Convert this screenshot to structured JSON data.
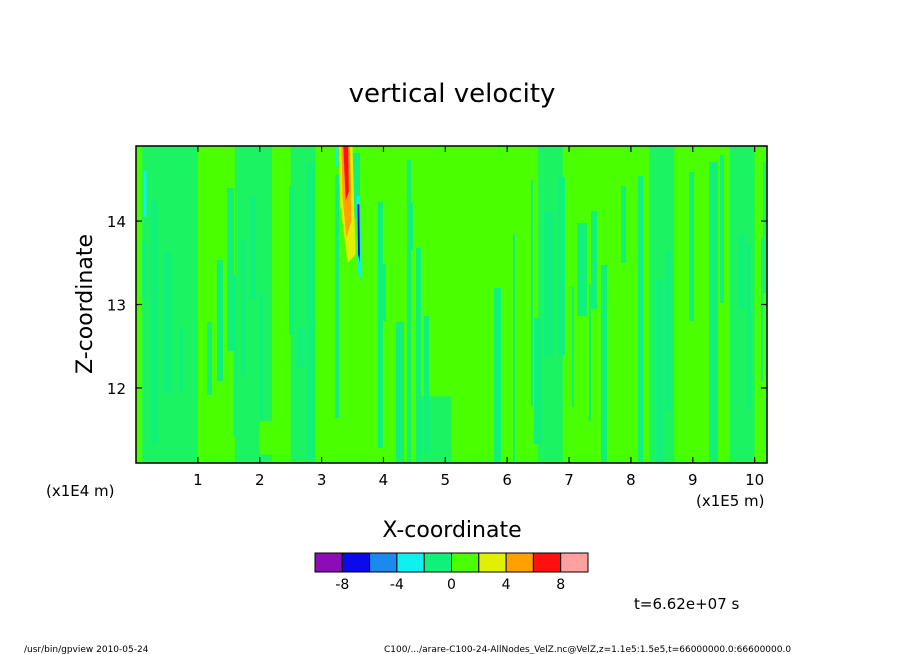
{
  "chart_data": {
    "type": "heatmap",
    "title": "vertical velocity",
    "xlabel": "X-coordinate",
    "ylabel": "Z-coordinate",
    "x_unit_label": "(x1E5 m)",
    "y_unit_label": "(x1E4 m)",
    "xlim": [
      0,
      10.2
    ],
    "ylim": [
      11.1,
      14.9
    ],
    "x_ticks": [
      "1",
      "2",
      "3",
      "4",
      "5",
      "6",
      "7",
      "8",
      "9",
      "10"
    ],
    "x_tick_values": [
      1,
      2,
      3,
      4,
      5,
      6,
      7,
      8,
      9,
      10
    ],
    "y_ticks": [
      "12",
      "13",
      "14"
    ],
    "y_tick_values": [
      12,
      13,
      14
    ],
    "colorbar": {
      "levels": [
        -10,
        -8,
        -6,
        -4,
        -2,
        0,
        2,
        4,
        6,
        8,
        10
      ],
      "labels": [
        "-8",
        "-4",
        "0",
        "4",
        "8"
      ],
      "label_values": [
        -8,
        -4,
        0,
        4,
        8
      ],
      "colors": [
        "#8e0cb8",
        "#0a0aea",
        "#1a8af0",
        "#10f0f0",
        "#10f07a",
        "#4aff00",
        "#e0f000",
        "#ffa000",
        "#ff1010",
        "#ffa0a0"
      ]
    },
    "background_level": "-2 to 0 and 0 to 2",
    "features": [
      {
        "type": "positive-plume",
        "x_range": [
          3.3,
          3.5
        ],
        "z_range": [
          13.5,
          14.9
        ],
        "peak": "8 to 10"
      },
      {
        "type": "negative-streak",
        "x_range": [
          3.55,
          3.65
        ],
        "z_range": [
          13.3,
          14.3
        ],
        "peak": "-8 to -6"
      }
    ]
  },
  "time_label": "t=6.62e+07 s",
  "footer": {
    "left": "/usr/bin/gpview   2010-05-24",
    "right": "C100/.../arare-C100-24-AllNodes_VelZ.nc@VelZ,z=1.1e5:1.5e5,t=66000000.0:66600000.0"
  }
}
